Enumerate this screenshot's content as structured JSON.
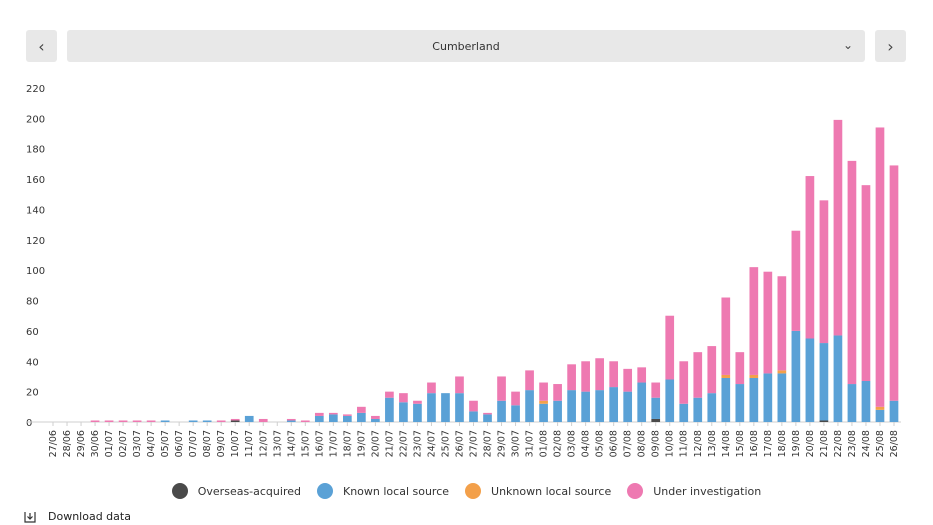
{
  "nav": {
    "prev_icon": "chevron-left-icon",
    "next_icon": "chevron-right-icon",
    "prev_glyph": "‹",
    "next_glyph": "›",
    "selected_region": "Cumberland",
    "dropdown_glyph": "⌄"
  },
  "download": {
    "label": "Download data",
    "icon": "download-icon"
  },
  "colors": {
    "overseas": "#4a4a4a",
    "known": "#5aa1d6",
    "unknown": "#f3a04a",
    "investigation": "#ee79b1"
  },
  "chart_data": {
    "type": "bar",
    "stacked": true,
    "title": "",
    "xlabel": "",
    "ylabel": "",
    "ylim": [
      0,
      220
    ],
    "yticks": [
      0,
      20,
      40,
      60,
      80,
      100,
      120,
      140,
      160,
      180,
      200,
      220
    ],
    "grid": false,
    "legend_position": "bottom",
    "categories": [
      "27/06",
      "28/06",
      "29/06",
      "30/06",
      "01/07",
      "02/07",
      "03/07",
      "04/07",
      "05/07",
      "06/07",
      "07/07",
      "08/07",
      "09/07",
      "10/07",
      "11/07",
      "12/07",
      "13/07",
      "14/07",
      "15/07",
      "16/07",
      "17/07",
      "18/07",
      "19/07",
      "20/07",
      "21/07",
      "22/07",
      "23/07",
      "24/07",
      "25/07",
      "26/07",
      "27/07",
      "28/07",
      "29/07",
      "30/07",
      "31/07",
      "01/08",
      "02/08",
      "03/08",
      "04/08",
      "05/08",
      "06/08",
      "07/08",
      "08/08",
      "09/08",
      "10/08",
      "11/08",
      "12/08",
      "13/08",
      "14/08",
      "15/08",
      "16/08",
      "17/08",
      "18/08",
      "19/08",
      "20/08",
      "21/08",
      "22/08",
      "23/08",
      "24/08",
      "25/08",
      "26/08"
    ],
    "series": [
      {
        "name": "Overseas-acquired",
        "color": "#4a4a4a",
        "values": [
          0,
          0,
          0,
          0,
          0,
          0,
          0,
          0,
          0,
          0,
          0,
          0,
          0,
          1,
          0,
          0,
          0,
          0,
          0,
          0,
          0,
          0,
          0,
          0,
          0,
          0,
          0,
          0,
          0,
          0,
          0,
          0,
          0,
          0,
          0,
          0,
          0,
          0,
          0,
          0,
          0,
          0,
          0,
          2,
          0,
          0,
          0,
          0,
          0,
          0,
          0,
          0,
          0,
          0,
          0,
          1,
          0,
          0,
          0,
          0,
          0
        ]
      },
      {
        "name": "Known local source",
        "color": "#5aa1d6",
        "values": [
          0,
          0,
          0,
          0,
          0,
          0,
          0,
          0,
          1,
          0,
          1,
          1,
          0,
          0,
          4,
          0,
          0,
          1,
          0,
          4,
          5,
          4,
          6,
          2,
          16,
          13,
          12,
          19,
          19,
          19,
          7,
          5,
          14,
          11,
          21,
          12,
          14,
          21,
          20,
          21,
          23,
          20,
          26,
          14,
          28,
          12,
          16,
          19,
          29,
          25,
          29,
          32,
          32,
          60,
          55,
          51,
          57,
          25,
          27,
          8,
          14
        ]
      },
      {
        "name": "Unknown local source",
        "color": "#f3a04a",
        "values": [
          0,
          0,
          0,
          0,
          0,
          0,
          0,
          0,
          0,
          0,
          0,
          0,
          0,
          0,
          0,
          0,
          0,
          0,
          0,
          0,
          0,
          0,
          0,
          0,
          0,
          0,
          0,
          0,
          0,
          0,
          0,
          0,
          0,
          0,
          0,
          2,
          0,
          0,
          0,
          0,
          0,
          0,
          0,
          0,
          0,
          0,
          0,
          0,
          2,
          0,
          2,
          0,
          2,
          0,
          0,
          0,
          0,
          0,
          0,
          2,
          0
        ]
      },
      {
        "name": "Under investigation",
        "color": "#ee79b1",
        "values": [
          0,
          0,
          0,
          1,
          1,
          1,
          1,
          1,
          0,
          0,
          0,
          0,
          1,
          1,
          0,
          2,
          0,
          1,
          1,
          2,
          1,
          1,
          4,
          2,
          4,
          6,
          2,
          7,
          0,
          11,
          7,
          1,
          16,
          9,
          13,
          12,
          11,
          17,
          20,
          21,
          17,
          15,
          10,
          10,
          42,
          28,
          30,
          31,
          51,
          21,
          71,
          67,
          62,
          66,
          107,
          94,
          142,
          147,
          129,
          184,
          155
        ]
      }
    ]
  }
}
